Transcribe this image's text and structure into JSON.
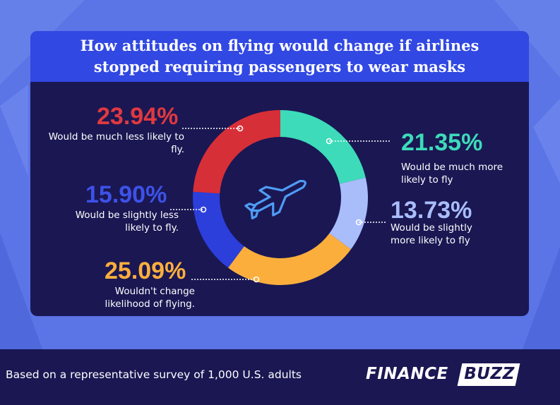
{
  "header": {
    "title": "How attitudes on flying would change if airlines stopped requiring passengers to wear masks"
  },
  "footer": {
    "note": "Based on a representative survey of 1,000 U.S. adults",
    "logo_part1": "FINANCE",
    "logo_part2": "BUZZ"
  },
  "colors": {
    "background": "#5b74e6",
    "card": "#1a1753",
    "header": "#3148e3",
    "teal": "#3ddbb9",
    "light_blue": "#a9bdfb",
    "orange": "#fbae3c",
    "blue": "#2c3fdb",
    "red": "#d72f38"
  },
  "icons": {
    "center": "airplane-icon"
  },
  "chart_data": {
    "type": "pie",
    "donut": true,
    "slices": [
      {
        "value": 21.35,
        "label": "21.35%",
        "description": "Would be much more likely to fly",
        "color": "#3ddbb9"
      },
      {
        "value": 13.73,
        "label": "13.73%",
        "description": "Would be slightly more likely to fly",
        "color": "#a9bdfb"
      },
      {
        "value": 25.09,
        "label": "25.09%",
        "description": "Wouldn't change likelihood of flying.",
        "color": "#fbae3c"
      },
      {
        "value": 15.9,
        "label": "15.90%",
        "description": "Would be slightly less likely to fly.",
        "color": "#2c3fdb"
      },
      {
        "value": 23.94,
        "label": "23.94%",
        "description": "Would be much less likely to fly.",
        "color": "#d72f38"
      }
    ]
  }
}
